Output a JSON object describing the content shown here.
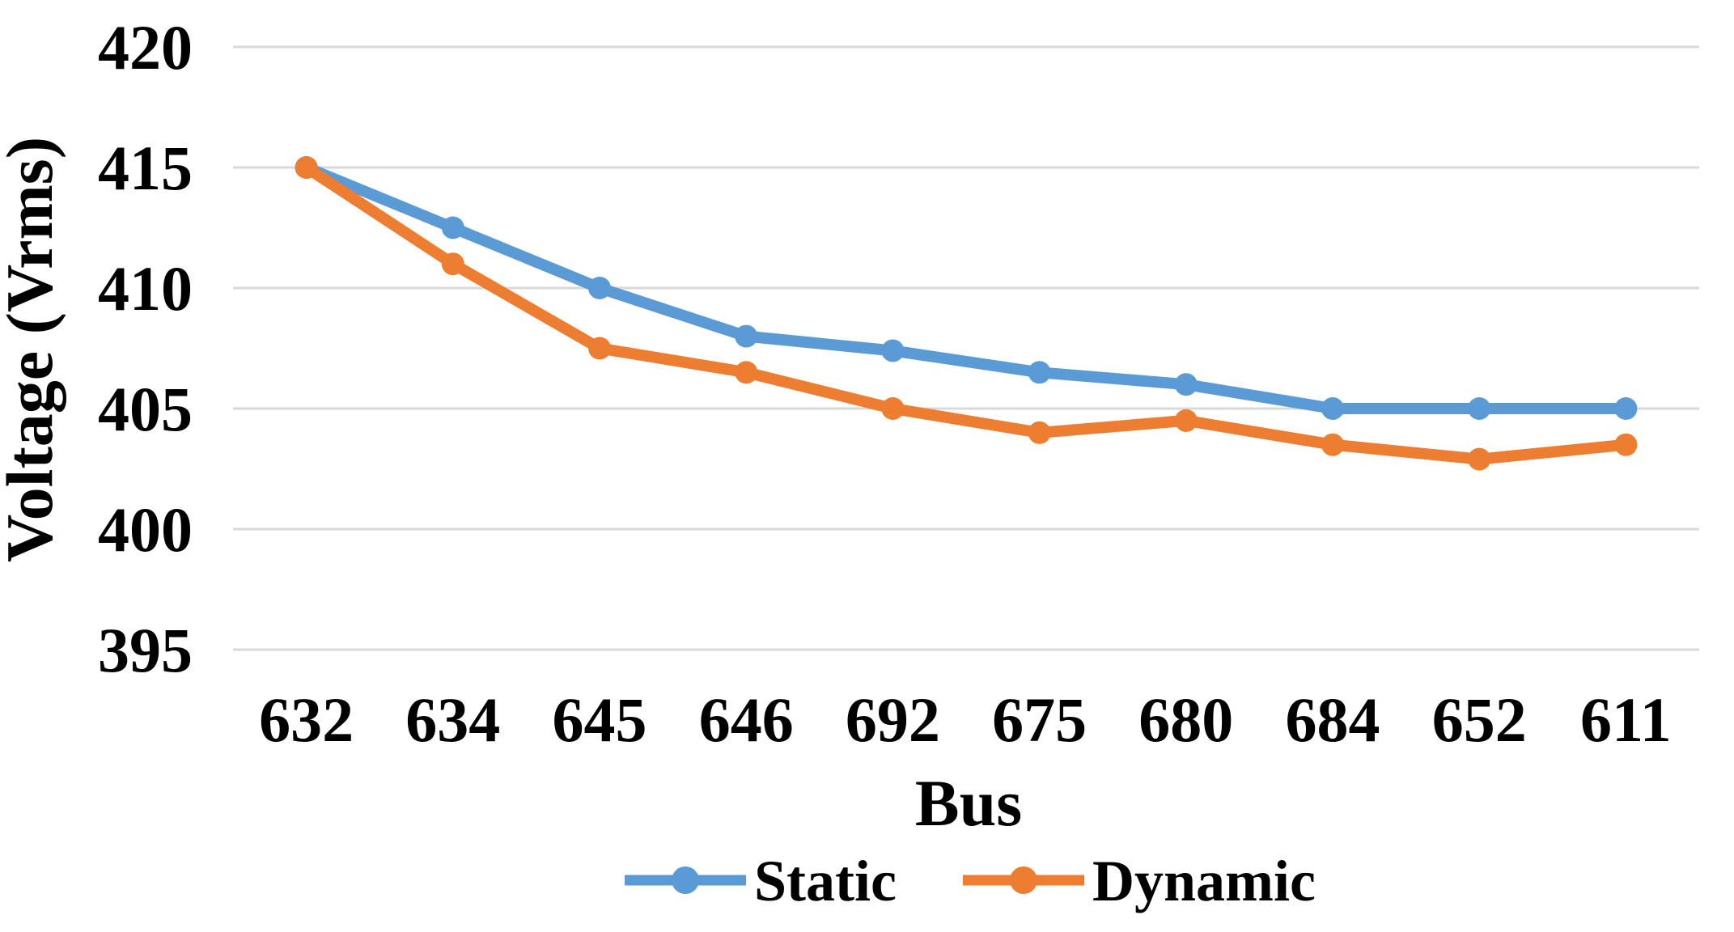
{
  "chart_data": {
    "type": "line",
    "categories": [
      "632",
      "634",
      "645",
      "646",
      "692",
      "675",
      "680",
      "684",
      "652",
      "611"
    ],
    "series": [
      {
        "name": "Static",
        "color": "#5B9BD5",
        "values": [
          415,
          412.5,
          410,
          408,
          407.4,
          406.5,
          406,
          405,
          405,
          405
        ]
      },
      {
        "name": "Dynamic",
        "color": "#ED7D31",
        "values": [
          415,
          411,
          407.5,
          406.5,
          405,
          404,
          404.5,
          403.5,
          402.9,
          403.5
        ]
      }
    ],
    "xlabel": "Bus",
    "ylabel": "Voltage (Vrms)",
    "ylim": [
      395,
      420
    ],
    "yticks": [
      395,
      400,
      405,
      410,
      415,
      420
    ],
    "grid": true,
    "gridline_color": "#D9D9D9",
    "background": "#FFFFFF",
    "text_color": "#000000",
    "legend_position": "bottom",
    "marker": "circle"
  }
}
